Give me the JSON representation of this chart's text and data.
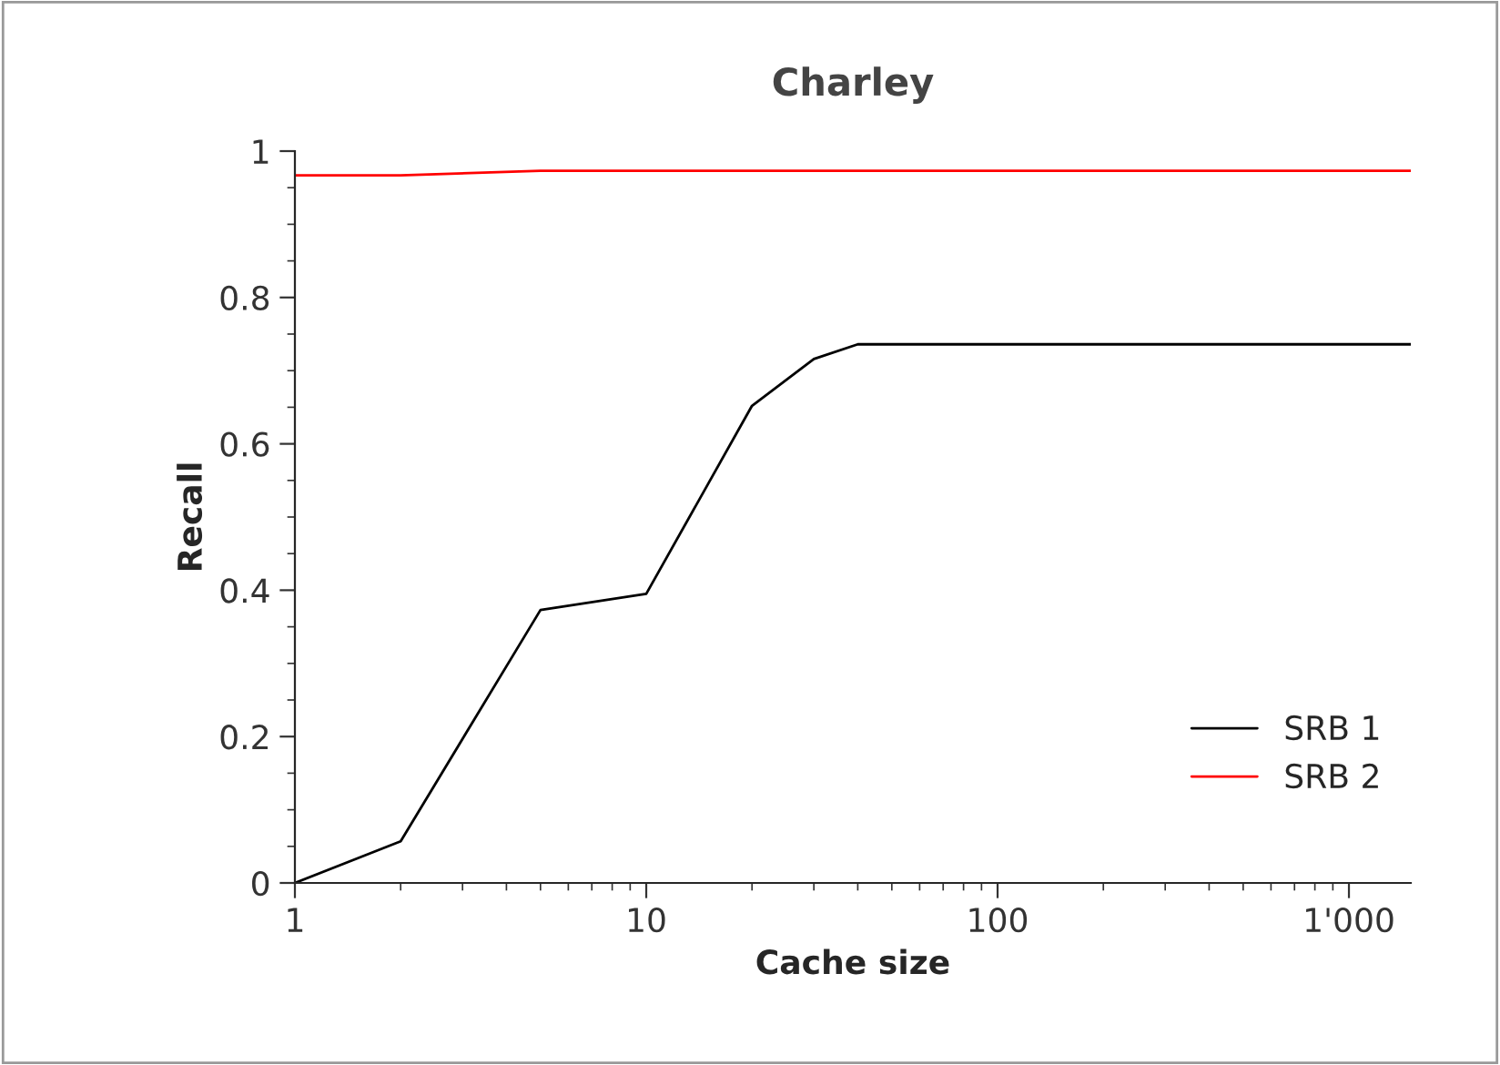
{
  "chart_data": {
    "type": "line",
    "title": "Charley",
    "xlabel": "Cache size",
    "ylabel": "Recall",
    "log": "x",
    "xlim": [
      1,
      1500
    ],
    "xticks": [
      1,
      10,
      100,
      {
        "value": 1000,
        "label": "1'000"
      }
    ],
    "ylim": [
      0,
      1.0
    ],
    "yticks": [
      0,
      0.2,
      0.4,
      0.6,
      0.8,
      1
    ],
    "legend": "bottom right",
    "grid": false,
    "series": [
      {
        "name": "SRB 1",
        "color": "#000000",
        "x": [
          1,
          2,
          5,
          10,
          20,
          30,
          40,
          1500
        ],
        "values": [
          0,
          0.057,
          0.373,
          0.395,
          0.652,
          0.716,
          0.736,
          0.736
        ]
      },
      {
        "name": "SRB 2",
        "color": "#ff0000",
        "x": [
          1,
          2,
          5,
          1500
        ],
        "values": [
          0.967,
          0.967,
          0.973,
          0.973
        ]
      }
    ]
  }
}
